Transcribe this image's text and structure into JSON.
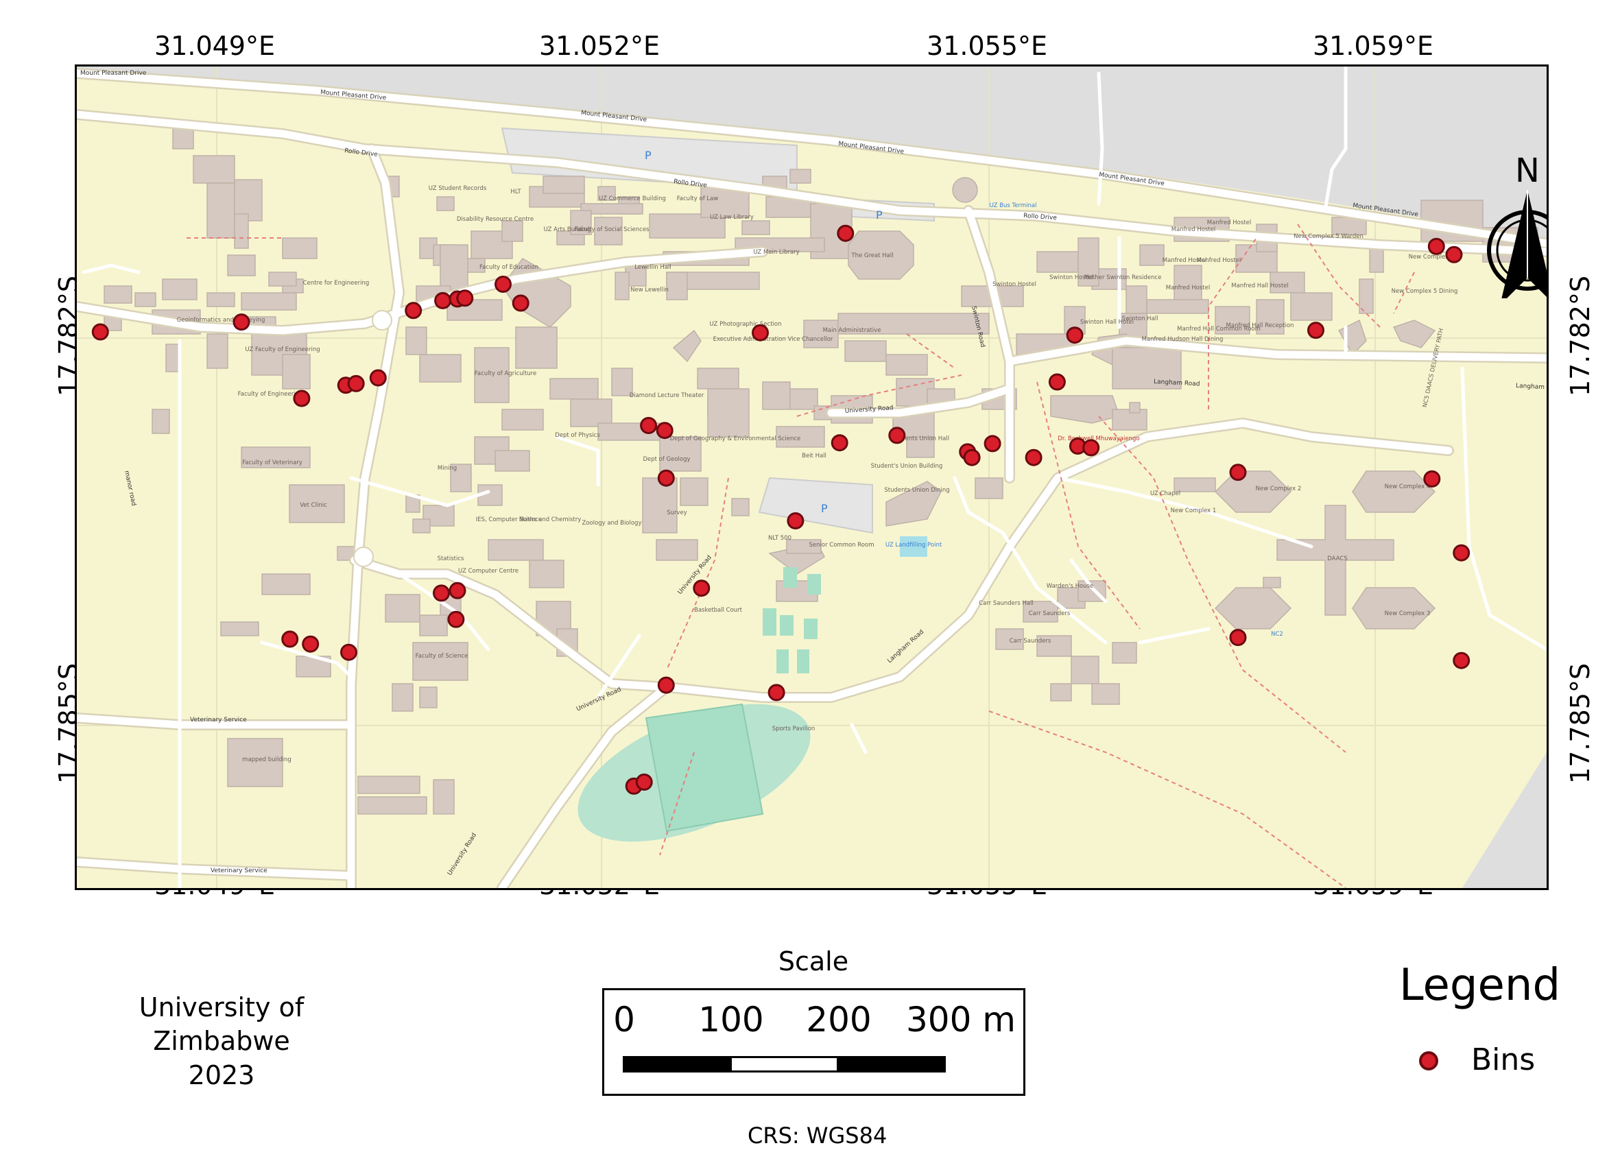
{
  "coordinates": {
    "top": [
      "31.049°E",
      "31.052°E",
      "31.055°E",
      "31.059°E"
    ],
    "bottom": [
      "31.049°E",
      "31.052°E",
      "31.055°E",
      "31.059°E"
    ],
    "left": [
      "17.782°S",
      "17.785°S"
    ],
    "right": [
      "17.782°S",
      "17.785°S"
    ]
  },
  "map": {
    "north_label": "N",
    "colors": {
      "background": "#f7f5cf",
      "building": "#d6c9c1",
      "road": "#ffffff",
      "road_outline": "#d9d2b8",
      "parking": "#e5e5e5",
      "track": "#b7e3cf",
      "pitch": "#a6dfc5",
      "outside": "#dedede",
      "bin_fill": "#d81e2a",
      "bin_stroke": "#6b0a10"
    },
    "bins": [
      [
        0.016,
        0.323
      ],
      [
        0.112,
        0.311
      ],
      [
        0.153,
        0.404
      ],
      [
        0.183,
        0.388
      ],
      [
        0.19,
        0.386
      ],
      [
        0.205,
        0.379
      ],
      [
        0.229,
        0.297
      ],
      [
        0.249,
        0.285
      ],
      [
        0.259,
        0.283
      ],
      [
        0.264,
        0.282
      ],
      [
        0.29,
        0.265
      ],
      [
        0.302,
        0.288
      ],
      [
        0.145,
        0.697
      ],
      [
        0.159,
        0.703
      ],
      [
        0.185,
        0.713
      ],
      [
        0.248,
        0.641
      ],
      [
        0.259,
        0.638
      ],
      [
        0.258,
        0.673
      ],
      [
        0.379,
        0.876
      ],
      [
        0.386,
        0.871
      ],
      [
        0.401,
        0.753
      ],
      [
        0.425,
        0.635
      ],
      [
        0.476,
        0.762
      ],
      [
        0.389,
        0.437
      ],
      [
        0.4,
        0.443
      ],
      [
        0.401,
        0.501
      ],
      [
        0.465,
        0.324
      ],
      [
        0.523,
        0.203
      ],
      [
        0.489,
        0.553
      ],
      [
        0.519,
        0.458
      ],
      [
        0.558,
        0.449
      ],
      [
        0.606,
        0.469
      ],
      [
        0.609,
        0.476
      ],
      [
        0.623,
        0.459
      ],
      [
        0.651,
        0.476
      ],
      [
        0.681,
        0.462
      ],
      [
        0.667,
        0.384
      ],
      [
        0.679,
        0.327
      ],
      [
        0.69,
        0.464
      ],
      [
        0.843,
        0.321
      ],
      [
        0.79,
        0.494
      ],
      [
        0.79,
        0.695
      ],
      [
        0.925,
        0.219
      ],
      [
        0.937,
        0.229
      ],
      [
        0.922,
        0.502
      ],
      [
        0.942,
        0.592
      ],
      [
        0.942,
        0.723
      ]
    ],
    "labels": {
      "mount_pleasant_drive_1": "Mount Pleasant Drive",
      "mount_pleasant_drive_2": "Mount Pleasant Drive",
      "mount_pleasant_drive_3": "Mount Pleasant Drive",
      "mount_pleasant_drive_4": "Mount Pleasant Drive",
      "mount_pleasant_drive_5": "Mount Pleasant Drive",
      "rollo_drive_1": "Rollo Drive",
      "rollo_drive_2": "Rollo Drive",
      "rollo_drive_3": "Rollo Drive",
      "university_road_1": "University Road",
      "university_road_2": "University Road",
      "university_road_3": "University Road",
      "university_road_4": "University Road",
      "langham_road_1": "Langham Road",
      "langham_road_2": "Langham Road",
      "langham_road_3": "Langham Road",
      "swinton_road": "Swinton Road",
      "veterinary_service_1": "Veterinary Service",
      "veterinary_service_2": "Veterinary Service",
      "manor_road": "manor road",
      "parking": "P",
      "uz_student_records": "UZ Student Records",
      "hlt": "HLT",
      "uz_commerce": "UZ Commerce Building",
      "faculty_of_law": "Faculty of Law",
      "uz_law_library": "UZ Law Library",
      "uz_main_library": "UZ Main Library",
      "disability_centre": "Disability Resource Centre",
      "uz_arts": "UZ Arts Building",
      "social_sciences": "Faculty of Social Sciences",
      "lewellin": "Lewellin Hall",
      "new_lewellin": "New Lewellin",
      "great_hall": "The Great Hall",
      "centre_eng": "Centre for Engineering",
      "faculty_education": "Faculty of Education",
      "geoinformatics": "Geoinformatics and Surveying",
      "uz_faculty_eng": "UZ Faculty of Engineering",
      "faculty_eng": "Faculty of Engineering",
      "faculty_agri": "Faculty of Agriculture",
      "photographic": "UZ Photographic Section",
      "exec_admin": "Executive Administration Vice Chancellor",
      "main_admin": "Main Administrative",
      "diamond": "Diamond Lecture Theater",
      "dept_physics": "Dept of Physics",
      "dept_geography": "Dept of Geography & Environmental Science",
      "dept_geology": "Dept of Geology",
      "faculty_vet": "Faculty of Veterinary",
      "vet_clinic": "Vet Clinic",
      "mining": "Mining",
      "ies_computer": "IES, Computer Science",
      "maths": "Maths and Chemistry",
      "zoology": "Zoology and Biology",
      "survey": "Survey",
      "statistics": "Statistics",
      "uz_computer": "UZ Computer Centre",
      "faculty_science": "Faculty of Science",
      "nlt500": "NLT 500",
      "beit_hall": "Beit Hall",
      "senior_common": "Senior Common Room",
      "students_union": "Students Union Hall",
      "students_union_building": "Student's Union Building",
      "students_union_dining": "Students Union Dining",
      "basketball": "Basketball Court",
      "sports_pavilion": "Sports Pavilion",
      "uz_landfilling": "UZ Landfilling Point",
      "mapped_building": "mapped building",
      "swinton_hostel_1": "Swinton Hostel",
      "swinton_hostel_2": "Swinton Hostel",
      "mother_swinton": "Mother Swinton Residence",
      "swinton_hall": "Swinton Hall Hotel",
      "swinton_hall_2": "Swinton Hall",
      "manfred_1": "Manfred Hostel",
      "manfred_2": "Manfred Hostel",
      "manfred_3": "Manfred Hostel",
      "manfred_4": "Manfred Hostel",
      "manfred_5": "Manfred Hostel",
      "manfred_6": "Manfred Hall Hostel",
      "manfred_hudson": "Manfred Hudson Hall Dining",
      "manfred_common": "Manfred Hall Common Room",
      "manfred_reception": "Manfred Hall Reception",
      "new_complex_5_warden": "New Complex 5 Warden",
      "new_complex_5": "New Complex 5",
      "new_complex_5_dining": "New Complex 5 Dining",
      "delivery_path": "NC5 DAACS DELIVERY PATH",
      "dr_boshwell": "Dr. Boshwell Mhuwayaiengo",
      "uz_chapel": "UZ Chapel",
      "new_complex_1": "New Complex 1",
      "new_complex_2": "New Complex 2",
      "new_complex_3": "New Complex 3",
      "new_complex_4": "New Complex 4",
      "new_complex_1b": "New Complex 1",
      "daacs": "DAACS",
      "wardens_house": "Warden's House",
      "carr_saunders_hall": "Carr Saunders Hall",
      "carr_saunders": "Carr Saunders",
      "carr_saunders_2": "Carr Saunders",
      "uz_bus": "UZ Bus Terminal",
      "nc2": "NC2"
    }
  },
  "footer": {
    "institution": "University of Zimbabwe",
    "year": "2023",
    "crs": "CRS: WGS84"
  },
  "scale": {
    "title": "Scale",
    "labels": [
      "0",
      "100",
      "200",
      "300 m"
    ]
  },
  "legend": {
    "title": "Legend",
    "items": [
      {
        "label": "Bins",
        "color": "#d81e2a"
      }
    ]
  }
}
